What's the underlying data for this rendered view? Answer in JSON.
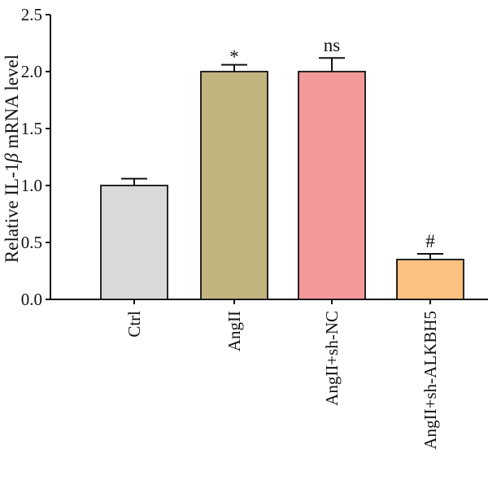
{
  "chart_data": {
    "type": "bar",
    "ylabel": "Relative IL-1β mRNA level",
    "ylabel_parts": [
      "Relative IL-1",
      "β",
      " mRNA level"
    ],
    "ylim": [
      0,
      2.5
    ],
    "yticks": [
      "0.0",
      "0.5",
      "1.0",
      "1.5",
      "2.0",
      "2.5"
    ],
    "categories": [
      "Ctrl",
      "AngII",
      "AngII+sh-NC",
      "AngII+sh-ALKBH5"
    ],
    "values": [
      1.0,
      2.0,
      2.0,
      0.35
    ],
    "errors": [
      0.06,
      0.06,
      0.12,
      0.05
    ],
    "annotations": [
      "",
      "*",
      "ns",
      "#"
    ],
    "colors": [
      "#d9d9d9",
      "#c2b47f",
      "#f4999a",
      "#fbc180"
    ],
    "grid": false,
    "legend": "none"
  }
}
